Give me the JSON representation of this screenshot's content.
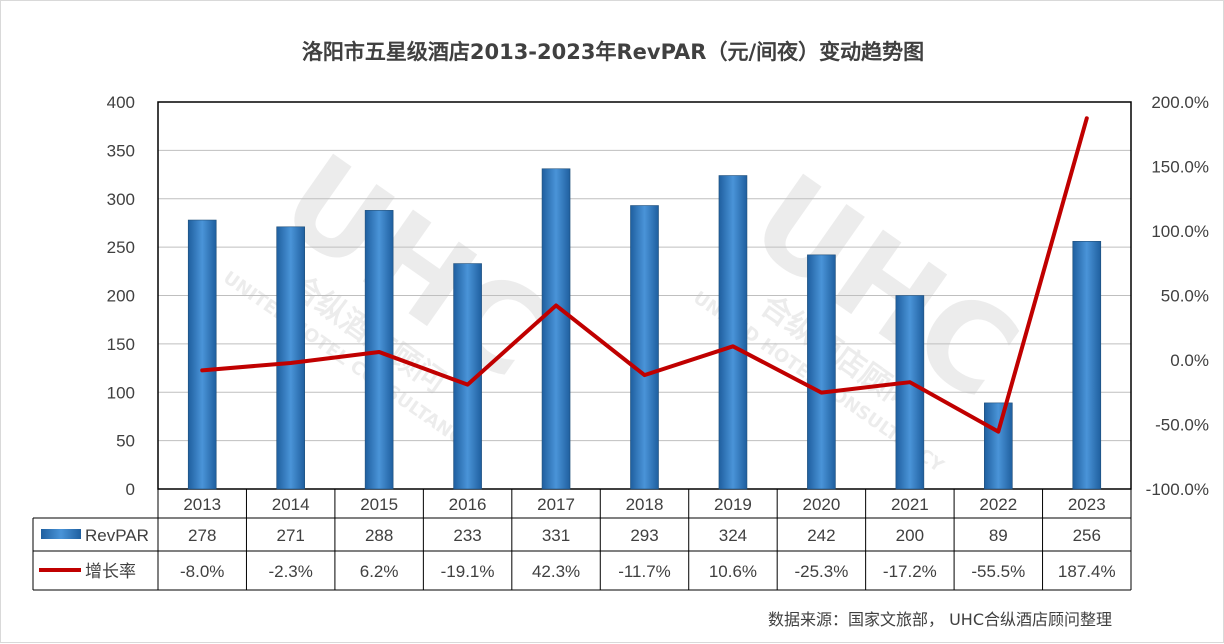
{
  "chart_data": {
    "type": "bar+line",
    "title": "洛阳市五星级酒店2013-2023年RevPAR（元/间夜）变动趋势图",
    "categories": [
      "2013",
      "2014",
      "2015",
      "2016",
      "2017",
      "2018",
      "2019",
      "2020",
      "2021",
      "2022",
      "2023"
    ],
    "series": [
      {
        "name": "RevPAR",
        "kind": "bar",
        "axis": "left",
        "values": [
          278,
          271,
          288,
          233,
          331,
          293,
          324,
          242,
          200,
          89,
          256
        ],
        "labels": [
          "278",
          "271",
          "288",
          "233",
          "331",
          "293",
          "324",
          "242",
          "200",
          "89",
          "256"
        ],
        "color": "#2f75b5"
      },
      {
        "name": "增长率",
        "kind": "line",
        "axis": "right",
        "values": [
          -8.0,
          -2.3,
          6.2,
          -19.1,
          42.3,
          -11.7,
          10.6,
          -25.3,
          -17.2,
          -55.5,
          187.4
        ],
        "labels": [
          "-8.0%",
          "-2.3%",
          "6.2%",
          "-19.1%",
          "42.3%",
          "-11.7%",
          "10.6%",
          "-25.3%",
          "-17.2%",
          "-55.5%",
          "187.4%"
        ],
        "color": "#c00000"
      }
    ],
    "ylim_left": [
      0,
      400
    ],
    "ylim_right": [
      -100,
      200
    ],
    "left_ticks": [
      "0",
      "50",
      "100",
      "150",
      "200",
      "250",
      "300",
      "350",
      "400"
    ],
    "right_ticks": [
      "-100.0%",
      "-50.0%",
      "0.0%",
      "50.0%",
      "100.0%",
      "150.0%",
      "200.0%"
    ],
    "grid": true,
    "data_table": true
  },
  "source": "数据来源：国家文旅部， UHC合纵酒店顾问整理",
  "watermark": {
    "logo": "UHC",
    "chinese": "合纵酒店顾问",
    "english": "UNITED HOTEL CONSULTANCY"
  }
}
